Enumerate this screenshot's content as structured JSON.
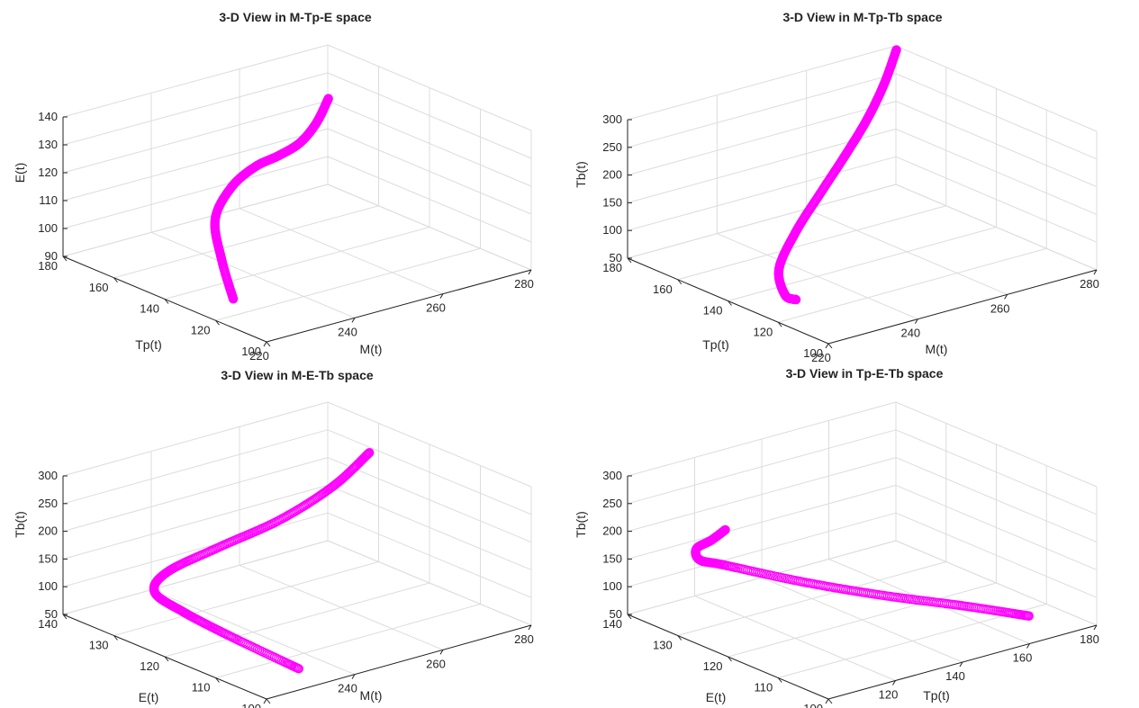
{
  "colors": {
    "trajectory": "#ff00ff",
    "axes": "#222222",
    "grid": "#dcdcdc"
  },
  "chart_data": [
    {
      "type": "scatter",
      "title": "3-D View in M-Tp-E space",
      "xlabel": "M(t)",
      "ylabel": "Tp(t)",
      "zlabel": "E(t)",
      "xlim": [
        220,
        280
      ],
      "ylim": [
        100,
        180
      ],
      "zlim": [
        90,
        140
      ],
      "xticks": [
        "220",
        "240",
        "260",
        "280"
      ],
      "yticks": [
        "100",
        "120",
        "140",
        "160",
        "180"
      ],
      "zticks": [
        "90",
        "100",
        "110",
        "120",
        "130",
        "140"
      ],
      "grid": true,
      "points": [
        {
          "x": 224,
          "y": 120,
          "z": 96
        },
        {
          "x": 226,
          "y": 128,
          "z": 106
        },
        {
          "x": 232,
          "y": 141,
          "z": 113
        },
        {
          "x": 242,
          "y": 152,
          "z": 116
        },
        {
          "x": 252,
          "y": 160,
          "z": 116
        },
        {
          "x": 261,
          "y": 166,
          "z": 114
        },
        {
          "x": 268,
          "y": 170,
          "z": 114
        },
        {
          "x": 274,
          "y": 174,
          "z": 117
        },
        {
          "x": 279,
          "y": 178,
          "z": 122
        }
      ]
    },
    {
      "type": "scatter",
      "title": "3-D View in M-Tp-Tb space",
      "xlabel": "M(t)",
      "ylabel": "Tp(t)",
      "zlabel": "Tb(t)",
      "xlim": [
        220,
        280
      ],
      "ylim": [
        100,
        180
      ],
      "zlim": [
        50,
        300
      ],
      "xticks": [
        "220",
        "240",
        "260",
        "280"
      ],
      "yticks": [
        "100",
        "120",
        "140",
        "160",
        "180"
      ],
      "zticks": [
        "50",
        "100",
        "150",
        "200",
        "250",
        "300"
      ],
      "grid": true,
      "points": [
        {
          "x": 224,
          "y": 120,
          "z": 82
        },
        {
          "x": 226,
          "y": 128,
          "z": 71
        },
        {
          "x": 232,
          "y": 141,
          "z": 80
        },
        {
          "x": 242,
          "y": 152,
          "z": 104
        },
        {
          "x": 252,
          "y": 160,
          "z": 136
        },
        {
          "x": 261,
          "y": 166,
          "z": 174
        },
        {
          "x": 268,
          "y": 170,
          "z": 214
        },
        {
          "x": 274,
          "y": 174,
          "z": 256
        },
        {
          "x": 279,
          "y": 178,
          "z": 299
        }
      ]
    },
    {
      "type": "scatter",
      "title": "3-D View in M-E-Tb space",
      "xlabel": "M(t)",
      "ylabel": "E(t)",
      "zlabel": "Tb(t)",
      "xlim": [
        220,
        280
      ],
      "ylim": [
        90,
        140
      ],
      "zlim": [
        50,
        300
      ],
      "xticks": [
        "220",
        "240",
        "260",
        "280"
      ],
      "yticks": [
        "100",
        "110",
        "120",
        "130",
        "140"
      ],
      "zticks": [
        "50",
        "100",
        "150",
        "200",
        "250",
        "300"
      ],
      "grid": true,
      "points": [
        {
          "x": 231,
          "y": 94,
          "z": 68
        },
        {
          "x": 229,
          "y": 108,
          "z": 86
        },
        {
          "x": 227,
          "y": 118,
          "z": 106
        },
        {
          "x": 226,
          "y": 124,
          "z": 126
        },
        {
          "x": 229,
          "y": 124,
          "z": 156
        },
        {
          "x": 238,
          "y": 121,
          "z": 190
        },
        {
          "x": 249,
          "y": 118,
          "z": 224
        },
        {
          "x": 261,
          "y": 118,
          "z": 258
        },
        {
          "x": 271,
          "y": 120,
          "z": 290
        }
      ]
    },
    {
      "type": "scatter",
      "title": "3-D View in Tp-E-Tb space",
      "xlabel": "Tp(t)",
      "ylabel": "E(t)",
      "zlabel": "Tb(t)",
      "xlim": [
        100,
        180
      ],
      "ylim": [
        90,
        140
      ],
      "zlim": [
        50,
        300
      ],
      "xticks": [
        "100",
        "120",
        "140",
        "160",
        "180"
      ],
      "yticks": [
        "100",
        "110",
        "120",
        "130",
        "140"
      ],
      "zticks": [
        "50",
        "100",
        "150",
        "200",
        "250",
        "300"
      ],
      "grid": true,
      "points": [
        {
          "x": 167,
          "y": 96,
          "z": 70
        },
        {
          "x": 156,
          "y": 103,
          "z": 85
        },
        {
          "x": 141,
          "y": 111,
          "z": 105
        },
        {
          "x": 127,
          "y": 119,
          "z": 128
        },
        {
          "x": 112,
          "y": 126,
          "z": 162
        },
        {
          "x": 106,
          "y": 127,
          "z": 178
        },
        {
          "x": 105,
          "y": 127,
          "z": 200
        },
        {
          "x": 107,
          "y": 125,
          "z": 218
        },
        {
          "x": 110,
          "y": 124,
          "z": 235
        }
      ]
    }
  ]
}
